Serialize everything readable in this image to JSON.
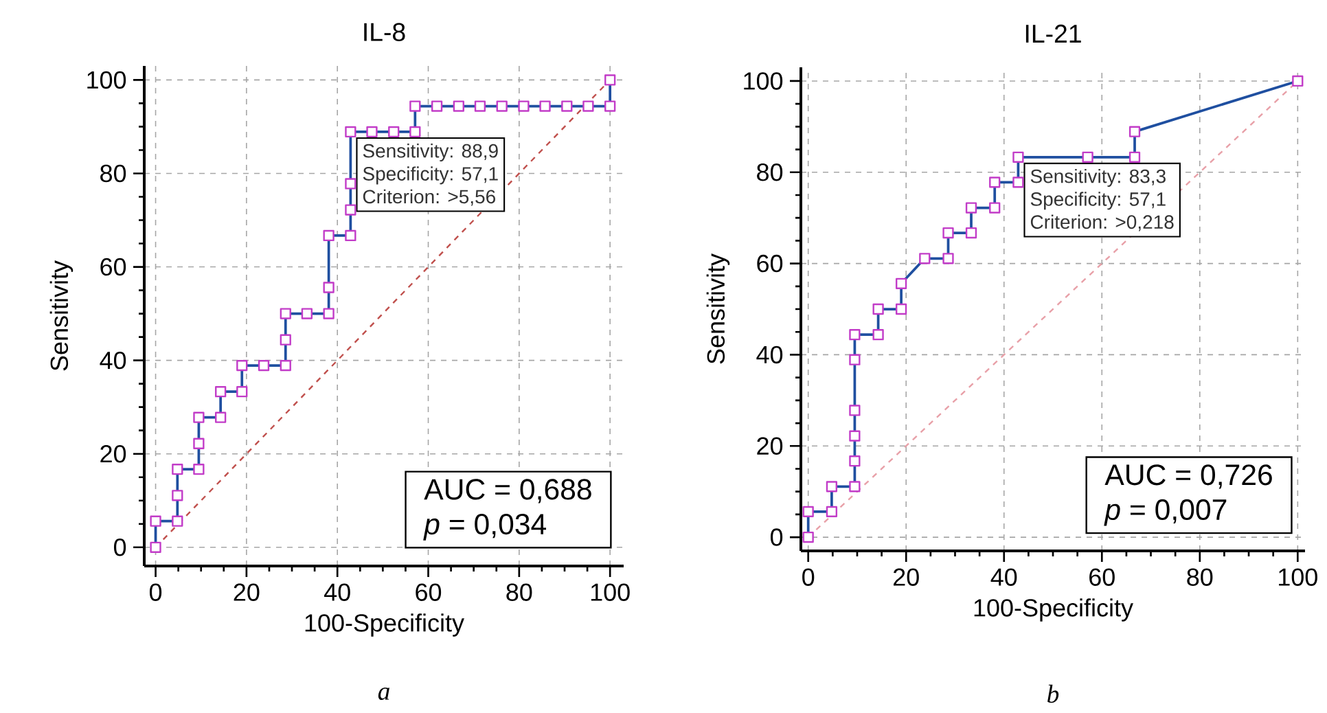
{
  "chart_data": [
    {
      "type": "line",
      "title": "IL-8",
      "xlabel": "100-Specificity",
      "ylabel": "Sensitivity",
      "xlim": [
        -2.5,
        103
      ],
      "ylim": [
        -4,
        103
      ],
      "xticks": [
        0,
        20,
        40,
        60,
        80,
        100
      ],
      "yticks": [
        0,
        20,
        40,
        60,
        80,
        100
      ],
      "grid": true,
      "series": [
        {
          "color": "#1f4fa0",
          "marker": "square",
          "line_style": "solid",
          "x": [
            0,
            0,
            4.8,
            4.8,
            4.8,
            9.5,
            9.5,
            9.5,
            14.3,
            14.3,
            19.0,
            19.0,
            23.8,
            28.6,
            28.6,
            28.6,
            33.3,
            38.1,
            38.1,
            38.1,
            42.9,
            42.9,
            42.9,
            42.9,
            47.6,
            52.4,
            57.1,
            57.1,
            61.9,
            66.7,
            71.4,
            76.2,
            81.0,
            85.7,
            90.5,
            95.2,
            100,
            100
          ],
          "values": [
            0,
            5.6,
            5.6,
            11.1,
            16.7,
            16.7,
            22.2,
            27.8,
            27.8,
            33.3,
            33.3,
            38.9,
            38.9,
            38.9,
            44.4,
            50,
            50,
            50,
            55.6,
            66.7,
            66.7,
            72.2,
            77.8,
            88.9,
            88.9,
            88.9,
            88.9,
            94.4,
            94.4,
            94.4,
            94.4,
            94.4,
            94.4,
            94.4,
            94.4,
            94.4,
            94.4,
            100
          ]
        },
        {
          "color": "#c0504d",
          "marker": "none",
          "line_style": "dashed",
          "x": [
            0,
            100
          ],
          "values": [
            0,
            100
          ]
        }
      ],
      "annotations": [
        {
          "text": "Sensitivity: 88,9",
          "x": 42.9,
          "y": 88.9
        },
        "Specificity: 57,1",
        "Criterion: >5,56",
        "AUC = 0,688",
        "*p* = 0,034",
        "a"
      ]
    },
    {
      "type": "line",
      "title": "IL-21",
      "xlabel": "100-Specificity",
      "ylabel": "Sensitivity",
      "xlim": [
        -1.5,
        101.5
      ],
      "ylim": [
        -3,
        103
      ],
      "xticks": [
        0,
        20,
        40,
        60,
        80,
        100
      ],
      "yticks": [
        0,
        20,
        40,
        60,
        80,
        100
      ],
      "grid": true,
      "series": [
        {
          "color": "#1f4fa0",
          "marker": "square",
          "line_style": "solid",
          "x": [
            0,
            0,
            4.8,
            4.8,
            9.5,
            9.5,
            9.5,
            9.5,
            9.5,
            9.5,
            14.3,
            14.3,
            19.0,
            19.0,
            23.8,
            28.6,
            28.6,
            33.3,
            33.3,
            38.1,
            38.1,
            42.9,
            42.9,
            57.1,
            66.7,
            66.7,
            100
          ],
          "values": [
            0,
            5.6,
            5.6,
            11.1,
            11.1,
            16.7,
            22.2,
            27.8,
            38.9,
            44.4,
            44.4,
            50,
            50,
            55.6,
            61.1,
            61.1,
            66.7,
            66.7,
            72.2,
            72.2,
            77.8,
            77.8,
            83.3,
            83.3,
            83.3,
            88.9,
            100
          ]
        },
        {
          "color": "#e8a0a8",
          "marker": "none",
          "line_style": "dashed",
          "x": [
            0,
            100
          ],
          "values": [
            0,
            100
          ]
        }
      ],
      "annotations": [
        {
          "text": "Sensitivity: 83,3",
          "x": 42.9,
          "y": 83.3
        },
        "Specificity: 57,1",
        "Criterion: >0,218",
        "AUC = 0,726",
        "*p* = 0,007",
        "b"
      ]
    }
  ]
}
